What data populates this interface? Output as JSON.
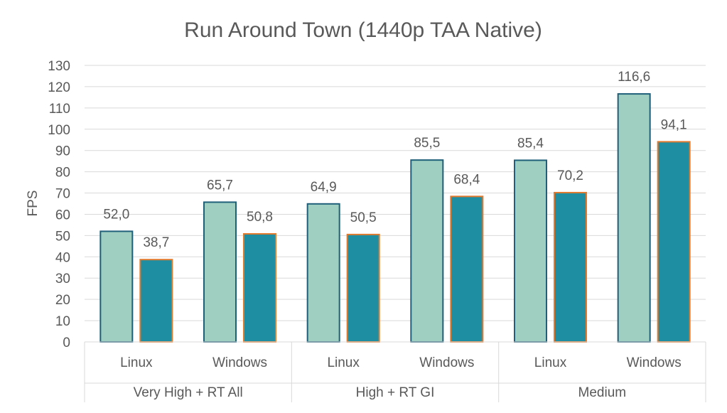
{
  "chart_data": {
    "type": "bar",
    "title": "Run Around Town (1440p TAA Native)",
    "ylabel": "FPS",
    "ylim": [
      0,
      130
    ],
    "ytick_step": 10,
    "yticks": [
      "0",
      "10",
      "20",
      "30",
      "40",
      "50",
      "60",
      "70",
      "80",
      "90",
      "100",
      "110",
      "120",
      "130"
    ],
    "grid": true,
    "groups": [
      {
        "label": "Very High + RT All",
        "categories": [
          {
            "label": "Linux",
            "values": [
              52.0,
              38.7
            ],
            "value_labels": [
              "52,0",
              "38,7"
            ]
          },
          {
            "label": "Windows",
            "values": [
              65.7,
              50.8
            ],
            "value_labels": [
              "65,7",
              "50,8"
            ]
          }
        ]
      },
      {
        "label": "High + RT GI",
        "categories": [
          {
            "label": "Linux",
            "values": [
              64.9,
              50.5
            ],
            "value_labels": [
              "64,9",
              "50,5"
            ]
          },
          {
            "label": "Windows",
            "values": [
              85.5,
              68.4
            ],
            "value_labels": [
              "85,5",
              "68,4"
            ]
          }
        ]
      },
      {
        "label": "Medium",
        "categories": [
          {
            "label": "Linux",
            "values": [
              85.4,
              70.2
            ],
            "value_labels": [
              "85,4",
              "70,2"
            ]
          },
          {
            "label": "Windows",
            "values": [
              116.6,
              94.1
            ],
            "value_labels": [
              "116,6",
              "94,1"
            ]
          }
        ]
      }
    ],
    "series_colors": [
      {
        "fill": "#9fcfc0",
        "stroke": "#1f5f7a"
      },
      {
        "fill": "#1e8fa3",
        "stroke": "#e07a2e"
      }
    ]
  }
}
